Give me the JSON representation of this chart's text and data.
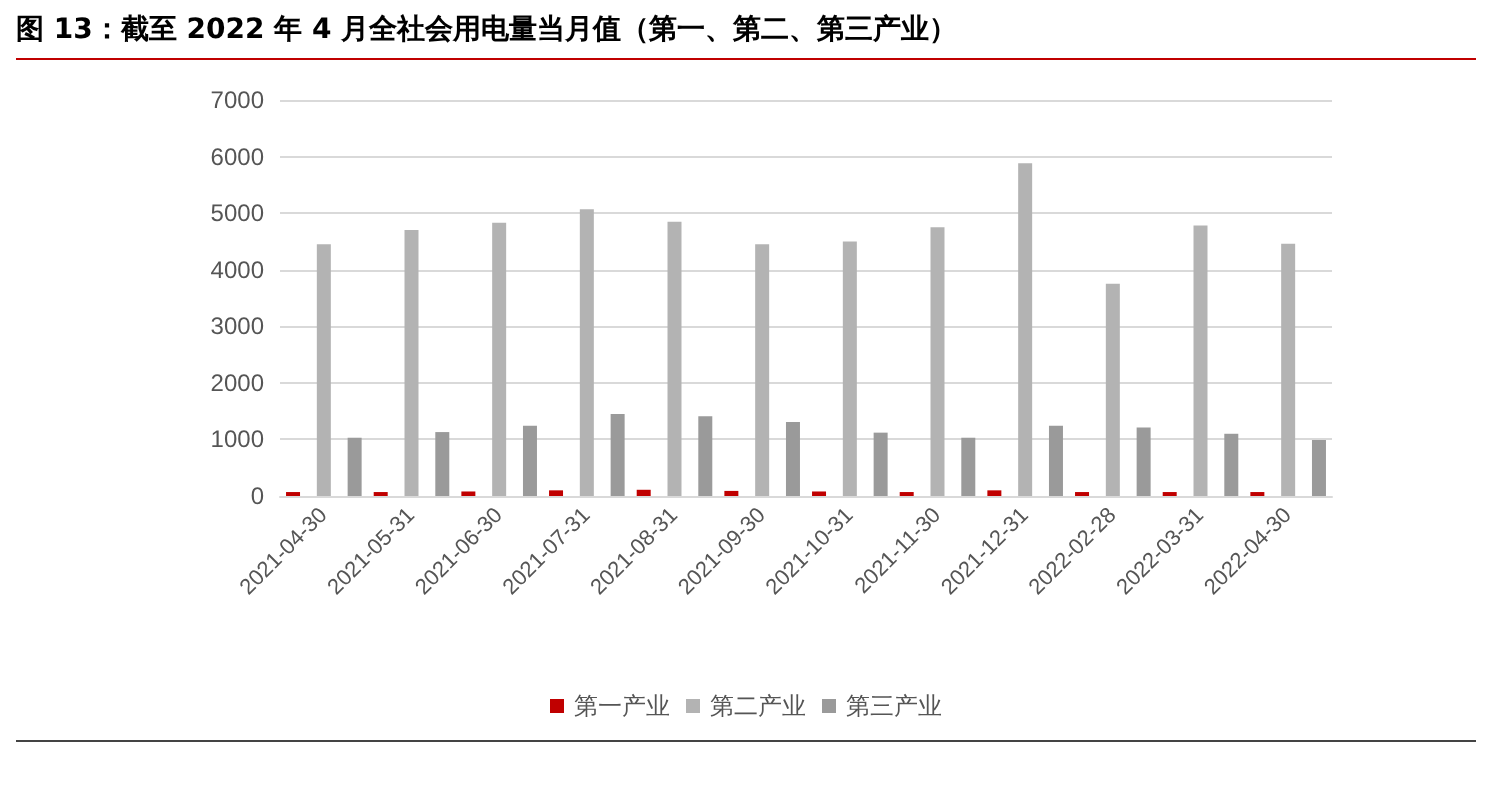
{
  "chart_data": {
    "type": "bar",
    "title": "图 13：截至 2022 年 4 月全社会用电量当月值（第一、第二、第三产业）",
    "categories": [
      "2021-04-30",
      "2021-05-31",
      "2021-06-30",
      "2021-07-31",
      "2021-08-31",
      "2021-09-30",
      "2021-10-31",
      "2021-11-30",
      "2021-12-31",
      "2022-02-28",
      "2022-03-31",
      "2022-04-30"
    ],
    "series": [
      {
        "name": "第一产业",
        "color": "#c00000",
        "values": [
          70,
          70,
          80,
          100,
          110,
          90,
          80,
          70,
          100,
          70,
          70,
          70
        ]
      },
      {
        "name": "第二产业",
        "color": "#b3b3b3",
        "values": [
          4450,
          4700,
          4830,
          5070,
          4850,
          4450,
          4500,
          4750,
          5880,
          3750,
          4780,
          4460
        ]
      },
      {
        "name": "第三产业",
        "color": "#9a9a9a",
        "values": [
          1030,
          1130,
          1240,
          1450,
          1410,
          1310,
          1120,
          1030,
          1240,
          1210,
          1100,
          990
        ]
      }
    ],
    "ylim": [
      0,
      7000
    ],
    "yticks": [
      0,
      1000,
      2000,
      3000,
      4000,
      5000,
      6000,
      7000
    ],
    "grid": "y",
    "legend": "bottom"
  }
}
